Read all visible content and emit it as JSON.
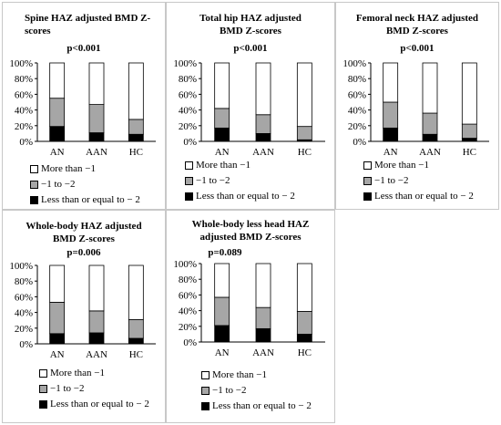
{
  "legend": [
    {
      "label": "More than −1",
      "color": "#ffffff"
    },
    {
      "label": "−1 to −2",
      "color": "#a6a6a6"
    },
    {
      "label": "Less than or equal to − 2",
      "color": "#000000"
    }
  ],
  "chart_data": [
    {
      "type": "bar",
      "stacked": true,
      "title": "Spine HAZ adjusted BMD Z-scores",
      "pvalue": "p<0.001",
      "categories": [
        "AN",
        "AAN",
        "HC"
      ],
      "yticks": [
        "0%",
        "20%",
        "40%",
        "60%",
        "80%",
        "100%"
      ],
      "ylim": [
        0,
        100
      ],
      "series": [
        {
          "name": "Less than or equal to − 2",
          "values": [
            19,
            11,
            9
          ]
        },
        {
          "name": "−1 to −2",
          "values": [
            36,
            36,
            19
          ]
        },
        {
          "name": "More than −1",
          "values": [
            45,
            53,
            72
          ]
        }
      ]
    },
    {
      "type": "bar",
      "stacked": true,
      "title": "Total hip HAZ adjusted BMD Z-scores",
      "pvalue": "p<0.001",
      "categories": [
        "AN",
        "AAN",
        "HC"
      ],
      "yticks": [
        "0%",
        "20%",
        "40%",
        "60%",
        "80%",
        "100%"
      ],
      "ylim": [
        0,
        100
      ],
      "series": [
        {
          "name": "Less than or equal to − 2",
          "values": [
            17,
            10,
            2
          ]
        },
        {
          "name": "−1 to −2",
          "values": [
            25,
            24,
            17
          ]
        },
        {
          "name": "More than −1",
          "values": [
            58,
            66,
            81
          ]
        }
      ]
    },
    {
      "type": "bar",
      "stacked": true,
      "title": "Femoral neck HAZ adjusted BMD Z-scores",
      "pvalue": "p<0.001",
      "categories": [
        "AN",
        "AAN",
        "HC"
      ],
      "yticks": [
        "0%",
        "20%",
        "40%",
        "60%",
        "80%",
        "100%"
      ],
      "ylim": [
        0,
        100
      ],
      "series": [
        {
          "name": "Less than or equal to − 2",
          "values": [
            17,
            9,
            4
          ]
        },
        {
          "name": "−1 to −2",
          "values": [
            33,
            27,
            18
          ]
        },
        {
          "name": "More than −1",
          "values": [
            50,
            64,
            78
          ]
        }
      ]
    },
    {
      "type": "bar",
      "stacked": true,
      "title": "Whole-body HAZ adjusted BMD Z-scores",
      "pvalue": "p=0.006",
      "categories": [
        "AN",
        "AAN",
        "HC"
      ],
      "yticks": [
        "0%",
        "20%",
        "40%",
        "60%",
        "80%",
        "100%"
      ],
      "ylim": [
        0,
        100
      ],
      "series": [
        {
          "name": "Less than or equal to − 2",
          "values": [
            13,
            14,
            7
          ]
        },
        {
          "name": "−1 to −2",
          "values": [
            40,
            28,
            24
          ]
        },
        {
          "name": "More than −1",
          "values": [
            47,
            58,
            69
          ]
        }
      ]
    },
    {
      "type": "bar",
      "stacked": true,
      "title": "Whole-body less head HAZ adjusted BMD Z-scores",
      "pvalue": "p=0.089",
      "categories": [
        "AN",
        "AAN",
        "HC"
      ],
      "yticks": [
        "0%",
        "20%",
        "40%",
        "60%",
        "80%",
        "100%"
      ],
      "ylim": [
        0,
        100
      ],
      "series": [
        {
          "name": "Less than or equal to − 2",
          "values": [
            21,
            17,
            10
          ]
        },
        {
          "name": "−1 to −2",
          "values": [
            36,
            27,
            29
          ]
        },
        {
          "name": "More than −1",
          "values": [
            43,
            56,
            61
          ]
        }
      ]
    }
  ]
}
